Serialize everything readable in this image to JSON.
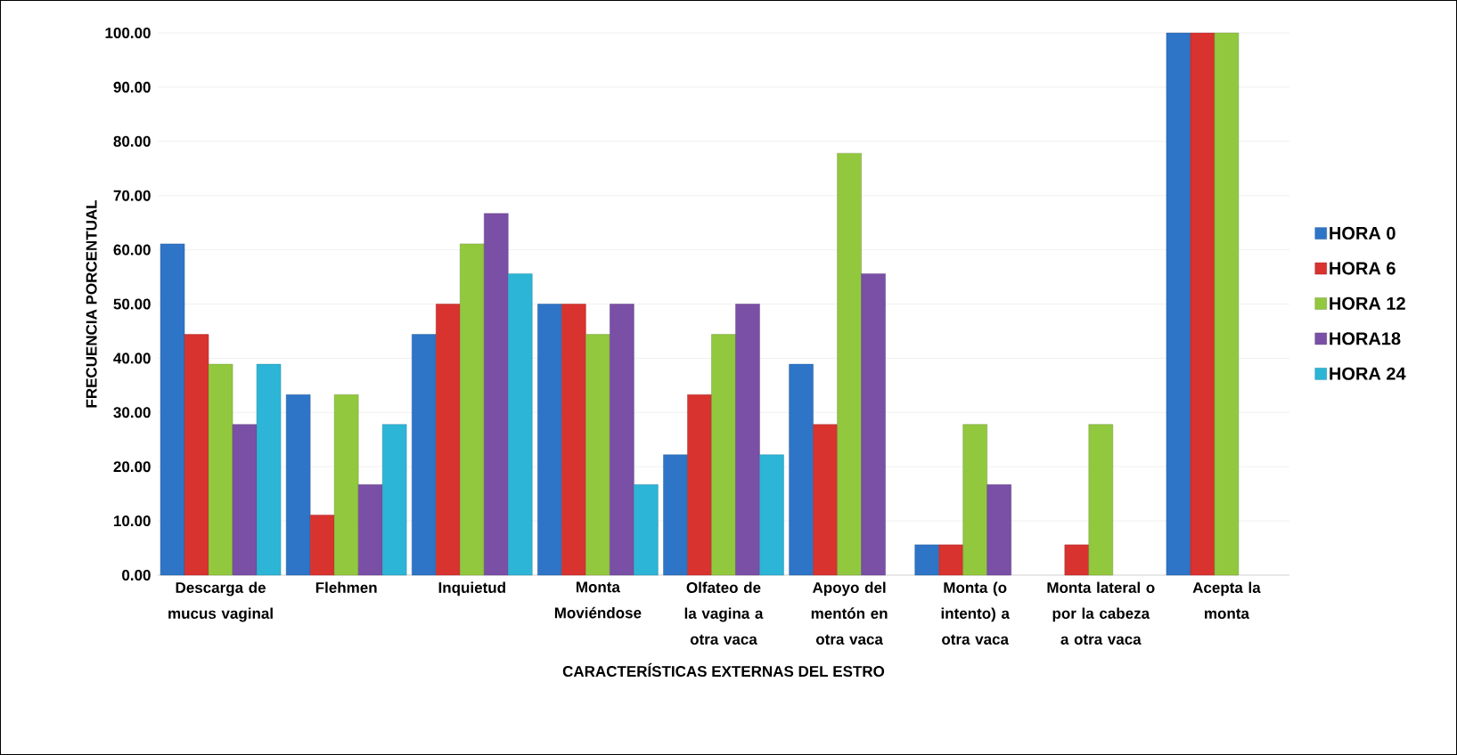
{
  "chart_data": {
    "type": "bar",
    "xlabel": "CARACTERÍSTICAS EXTERNAS DEL ESTRO",
    "ylabel": "FRECUENCIA PORCENTUAL",
    "categories": [
      "Descarga de mucus vaginal",
      "Flehmen",
      "Inquietud",
      "Monta Moviéndose",
      "Olfateo de la vagina a otra vaca",
      "Apoyo del mentón en otra vaca",
      "Monta (o intento) a otra vaca",
      "Monta lateral o por la cabeza a otra vaca",
      "Acepta la monta"
    ],
    "series": [
      {
        "name": "HORA 0",
        "color": "#2e75c8",
        "values": [
          61.1,
          33.3,
          44.4,
          50.0,
          22.2,
          38.9,
          5.6,
          null,
          100.0
        ]
      },
      {
        "name": "HORA 6",
        "color": "#d8332f",
        "values": [
          44.4,
          11.1,
          50.0,
          50.0,
          33.3,
          27.8,
          5.6,
          5.6,
          100.0
        ]
      },
      {
        "name": "HORA 12",
        "color": "#92c83e",
        "values": [
          38.9,
          33.3,
          61.1,
          44.4,
          44.4,
          77.8,
          27.8,
          27.8,
          100.0
        ]
      },
      {
        "name": "HORA18",
        "color": "#7a4fa6",
        "values": [
          27.8,
          16.7,
          66.7,
          50.0,
          50.0,
          55.6,
          16.7,
          null,
          null
        ]
      },
      {
        "name": "HORA 24",
        "color": "#2cb5d6",
        "values": [
          38.9,
          27.8,
          55.6,
          16.7,
          22.2,
          null,
          null,
          null,
          null
        ]
      }
    ],
    "ylim": [
      0,
      100
    ],
    "yticks": [
      {
        "value": 0,
        "label": "0.00"
      },
      {
        "value": 10,
        "label": "10.00"
      },
      {
        "value": 20,
        "label": "20.00"
      },
      {
        "value": 30,
        "label": "30.00"
      },
      {
        "value": 40,
        "label": "40.00"
      },
      {
        "value": 50,
        "label": "50.00"
      },
      {
        "value": 60,
        "label": "60.00"
      },
      {
        "value": 70,
        "label": "70.00"
      },
      {
        "value": 80,
        "label": "80.00"
      },
      {
        "value": 90,
        "label": "90.00"
      },
      {
        "value": 100,
        "label": "100.00"
      }
    ],
    "grid": "y",
    "legend": "right"
  }
}
